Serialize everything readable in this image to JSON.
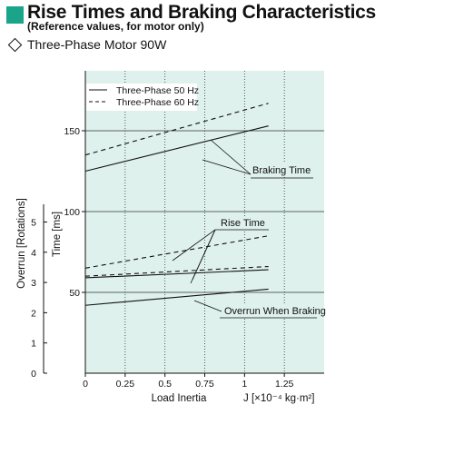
{
  "header": {
    "title": "Rise Times and Braking Characteristics",
    "subtitle": "(Reference values, for motor only)",
    "motor_label": "Three-Phase Motor  90W"
  },
  "colors": {
    "accent": "#1aa58a",
    "plot_background": "#dff1ec"
  },
  "chart_data": {
    "type": "line",
    "xlabel": "Load Inertia",
    "xunit_label": "J [×10⁻⁴ kg·m²]",
    "ylabel_time": "Time [ms]",
    "ylabel_overrun": "Overrun [Rotations]",
    "xlim": [
      0,
      1.5
    ],
    "ylim_time": [
      0,
      200
    ],
    "ylim_overrun": [
      0,
      6
    ],
    "x_ticks": [
      "0",
      "0.25",
      "0.5",
      "0.75",
      "1",
      "1.25"
    ],
    "x_tick_values": [
      0,
      0.25,
      0.5,
      0.75,
      1,
      1.25
    ],
    "time_ticks": [
      "50",
      "100",
      "150"
    ],
    "time_tick_values": [
      50,
      100,
      150
    ],
    "overrun_ticks": [
      "0",
      "1",
      "2",
      "3",
      "4",
      "5"
    ],
    "overrun_tick_values": [
      0,
      1,
      2,
      3,
      4,
      5
    ],
    "grid": true,
    "legend_position": "top-left",
    "legend": [
      {
        "label": "Three-Phase 50 Hz",
        "style": "solid"
      },
      {
        "label": "Three-Phase 60 Hz",
        "style": "dashed"
      }
    ],
    "series": [
      {
        "group": "Braking Time",
        "style": "solid",
        "x": [
          0,
          1.15
        ],
        "y": [
          125,
          153
        ]
      },
      {
        "group": "Braking Time",
        "style": "dashed",
        "x": [
          0,
          1.15
        ],
        "y": [
          135,
          167
        ]
      },
      {
        "group": "Rise Time",
        "style": "solid",
        "x": [
          0,
          1.15
        ],
        "y": [
          59,
          64
        ]
      },
      {
        "group": "Rise Time",
        "style": "dashed",
        "x": [
          0,
          1.15
        ],
        "y": [
          65,
          85
        ]
      },
      {
        "group": "Rise Time",
        "style": "dashed",
        "x": [
          0,
          1.15
        ],
        "y": [
          60,
          66
        ]
      },
      {
        "group": "Overrun When Braking",
        "style": "solid",
        "x": [
          0,
          1.15
        ],
        "y": [
          42,
          52
        ]
      }
    ],
    "annotations": [
      "Braking Time",
      "Rise Time",
      "Overrun When Braking"
    ]
  }
}
